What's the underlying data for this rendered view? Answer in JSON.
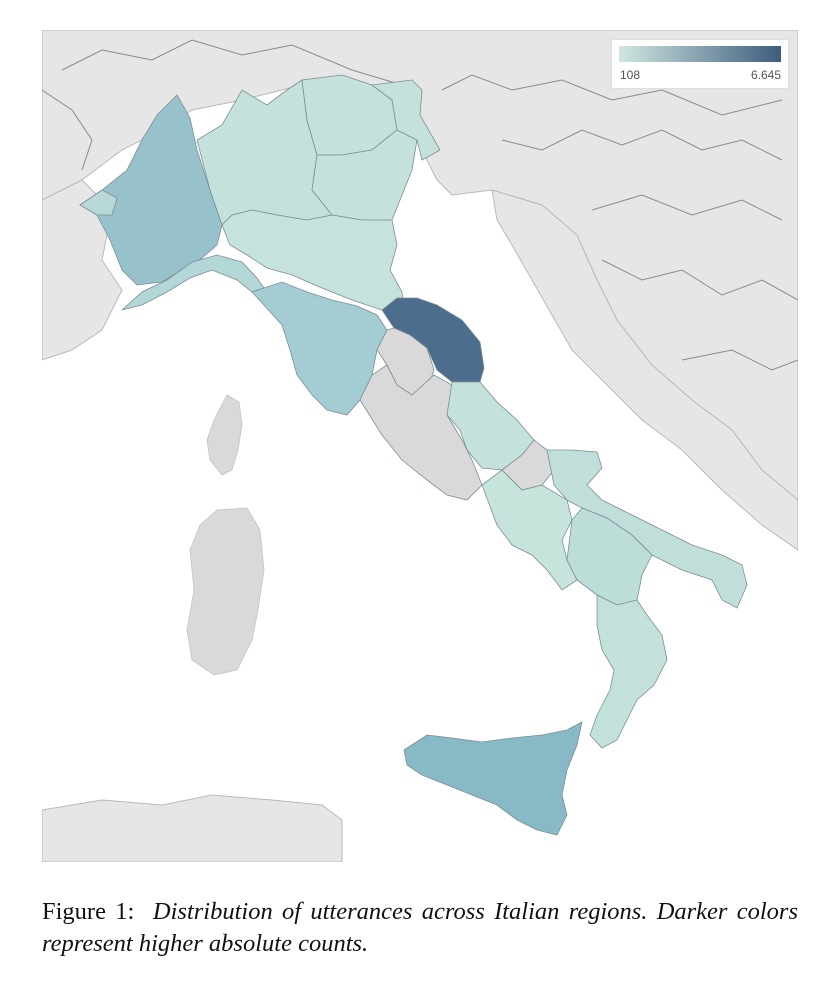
{
  "legend": {
    "min_label": "108",
    "max_label": "6.645",
    "color_min": "#cfe6df",
    "color_max": "#3e5c7e"
  },
  "regions": [
    {
      "name": "Piemonte",
      "color": "#97c2cc"
    },
    {
      "name": "Valle d'Aosta",
      "color": "#b9d9d8"
    },
    {
      "name": "Lombardia",
      "color": "#c4e1db"
    },
    {
      "name": "Trentino-Alto Adige",
      "color": "#c4e1db"
    },
    {
      "name": "Veneto",
      "color": "#c4e1db"
    },
    {
      "name": "Friuli-Venezia Giulia",
      "color": "#c4e1db"
    },
    {
      "name": "Liguria",
      "color": "#b3d6d7"
    },
    {
      "name": "Emilia-Romagna",
      "color": "#c6e2dc"
    },
    {
      "name": "Toscana",
      "color": "#a4ccd3"
    },
    {
      "name": "Marche",
      "color": "#4c6d8b"
    },
    {
      "name": "Umbria",
      "color": "#d9d9d9"
    },
    {
      "name": "Lazio",
      "color": "#d9d9d9"
    },
    {
      "name": "Abruzzo",
      "color": "#c4e2db"
    },
    {
      "name": "Molise",
      "color": "#d9d9d9"
    },
    {
      "name": "Campania",
      "color": "#c6e3dc"
    },
    {
      "name": "Puglia",
      "color": "#c0dfda"
    },
    {
      "name": "Basilicata",
      "color": "#bcddd8"
    },
    {
      "name": "Calabria",
      "color": "#c3e1db"
    },
    {
      "name": "Sicilia",
      "color": "#87b9c6"
    },
    {
      "name": "Sardegna",
      "color": "#d9d9d9"
    }
  ],
  "caption": {
    "label": "Figure 1:",
    "text": "Distribution of utterances across Italian regions. Darker colors represent higher absolute counts."
  }
}
